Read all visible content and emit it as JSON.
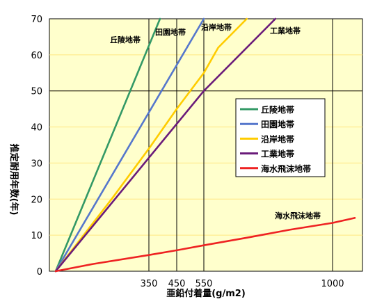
{
  "chart_data": {
    "type": "line",
    "xlabel": "亜鉛付着量(g/m2)",
    "ylabel": "推定耐用年数(年)",
    "xticks": [
      "350",
      "450",
      "550",
      "1000"
    ],
    "yticks": [
      "0",
      "10",
      "20",
      "30",
      "40",
      "50",
      "60",
      "70"
    ],
    "ylim": [
      0,
      70
    ],
    "grid": true,
    "legend_position": "right-middle",
    "background_color": "#ffffcc",
    "series": [
      {
        "name": "丘陵地帯",
        "color": "#339966",
        "x": [
          100,
          390
        ],
        "y": [
          0,
          70
        ]
      },
      {
        "name": "田園地帯",
        "color": "#5577cc",
        "x": [
          100,
          550
        ],
        "y": [
          0,
          70
        ]
      },
      {
        "name": "沿岸地帯",
        "color": "#ffcc00",
        "x": [
          100,
          250,
          350,
          450,
          550,
          600,
          700
        ],
        "y": [
          0,
          20,
          34,
          45,
          55,
          62,
          70
        ]
      },
      {
        "name": "工業地帯",
        "color": "#6a1b7a",
        "x": [
          100,
          550,
          800
        ],
        "y": [
          0,
          50,
          70
        ]
      },
      {
        "name": "海水飛沫地帯",
        "color": "#ee2222",
        "x": [
          100,
          200,
          350,
          450,
          550,
          700,
          850,
          1000,
          1090
        ],
        "y": [
          0,
          2,
          4.5,
          5.8,
          7.2,
          9.3,
          11.5,
          13.4,
          14.8
        ]
      }
    ],
    "annotations": [
      {
        "text": "丘陵地帯",
        "series": "丘陵地帯"
      },
      {
        "text": "田園地帯",
        "series": "田園地帯"
      },
      {
        "text": "沿岸地帯",
        "series": "沿岸地帯"
      },
      {
        "text": "工業地帯",
        "series": "工業地帯"
      },
      {
        "text": "海水飛沫地帯",
        "series": "海水飛沫地帯"
      }
    ]
  }
}
